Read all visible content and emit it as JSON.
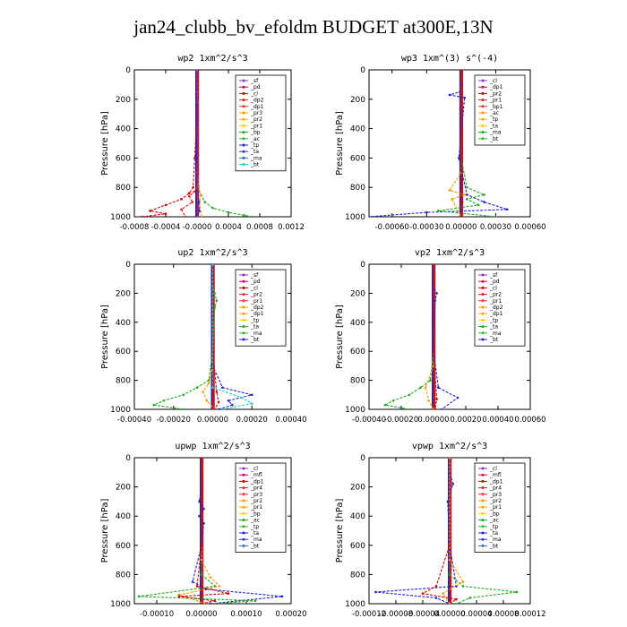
{
  "title": "jan24_clubb_bv_efoldm  BUDGET at300E,13N",
  "chart_data": [
    {
      "type": "line",
      "title": "wp2   1xm^2/s^3",
      "ylabel": "Pressure [hPa]",
      "xlim": [
        -0.0008,
        0.0012
      ],
      "ylim": [
        1000,
        0
      ],
      "xticks": [
        -0.0008,
        -0.0004,
        0.0,
        0.0004,
        0.0008,
        0.0012
      ],
      "xtick_labels": [
        "-0.0008",
        "-0.0004",
        "-0.0000",
        "0.0004",
        "0.0008",
        "0.0012"
      ],
      "yticks": [
        0,
        200,
        400,
        600,
        800,
        1000
      ],
      "ytick_labels": [
        "0",
        "200",
        "400",
        "600",
        "800",
        "1000"
      ],
      "legend": [
        "_sf",
        "_pd",
        "_cl",
        "_dp2",
        "_dp1",
        "_pr3",
        "_pr2",
        "_pr1",
        "_bp",
        "_ac",
        "_tp",
        "_ta",
        "_ma",
        "_bt"
      ],
      "series": [
        {
          "name": "_dp1",
          "color": "#cc0000",
          "x": [
            0,
            0,
            -1e-05,
            -3e-05,
            -5e-05,
            -0.0001,
            -0.0002,
            -0.0004,
            -0.0006,
            -0.0004,
            -0.0007
          ],
          "y": [
            0,
            200,
            400,
            600,
            800,
            840,
            880,
            920,
            960,
            980,
            1000
          ]
        },
        {
          "name": "_dp2",
          "color": "#dd2222",
          "x": [
            0,
            0,
            0,
            0,
            -4e-05,
            -0.0001,
            -6e-05,
            -0.0002,
            -0.00015
          ],
          "y": [
            0,
            400,
            700,
            800,
            830,
            860,
            900,
            950,
            1000
          ]
        },
        {
          "name": "_bp",
          "color": "#22aa22",
          "x": [
            0,
            0,
            1e-05,
            5e-05,
            0.0001,
            0.0002,
            0.0004,
            0.0006,
            0.0007
          ],
          "y": [
            0,
            600,
            800,
            850,
            900,
            940,
            970,
            990,
            1000
          ]
        },
        {
          "name": "_pr1",
          "color": "#ff9900",
          "x": [
            0,
            0,
            2e-05,
            5e-05,
            3e-05,
            6e-05
          ],
          "y": [
            0,
            600,
            800,
            850,
            900,
            1000
          ]
        },
        {
          "name": "_ta",
          "color": "#2222cc",
          "x": [
            0,
            0,
            2e-05,
            3e-05,
            0
          ],
          "y": [
            0,
            600,
            900,
            960,
            1000
          ]
        },
        {
          "name": "_sf",
          "color": "#8833cc",
          "x": [
            0,
            0,
            1e-05,
            1e-05
          ],
          "y": [
            0,
            150,
            220,
            1000
          ]
        }
      ]
    },
    {
      "type": "line",
      "title": "wp3   1xm^(3) s^(-4)",
      "ylabel": "Pressure [hPa]",
      "xlim": [
        -0.0008,
        0.0006
      ],
      "ylim": [
        1000,
        0
      ],
      "xticks": [
        -0.0006,
        -0.0003,
        0.0,
        0.0003,
        0.0006
      ],
      "xtick_labels": [
        "-0.00060",
        "-0.00030",
        "0.00000",
        "0.00030",
        "0.00060"
      ],
      "yticks": [
        0,
        200,
        400,
        600,
        800,
        1000
      ],
      "ytick_labels": [
        "0",
        "200",
        "400",
        "600",
        "800",
        "1000"
      ],
      "legend": [
        "_cl",
        "_dp1",
        "_pr2",
        "_pr1",
        "_bp1",
        "_ac",
        "_tp",
        "_ta",
        "_ma",
        "_bt"
      ],
      "series": [
        {
          "name": "_ta",
          "color": "#2222cc",
          "x": [
            0,
            0,
            -1e-05,
            -0.0001,
            3e-05,
            -2e-05,
            5e-05,
            0.0002,
            0.0004,
            -0.0003,
            -0.0008
          ],
          "y": [
            0,
            100,
            150,
            170,
            190,
            600,
            850,
            900,
            950,
            970,
            1000
          ]
        },
        {
          "name": "_bp1",
          "color": "#22aa22",
          "x": [
            0,
            0,
            5e-05,
            0.0002,
            5e-05,
            0.00015,
            -0.0002,
            0.0003
          ],
          "y": [
            0,
            600,
            800,
            850,
            880,
            920,
            960,
            1000
          ]
        },
        {
          "name": "_pr2",
          "color": "#ff9900",
          "x": [
            0,
            0,
            -0.0001,
            3e-05,
            -8e-05,
            0
          ],
          "y": [
            0,
            700,
            820,
            850,
            880,
            1000
          ]
        },
        {
          "name": "_dp1",
          "color": "#cc0000",
          "x": [
            0,
            0,
            1e-05,
            0
          ],
          "y": [
            0,
            600,
            900,
            1000
          ]
        }
      ]
    },
    {
      "type": "line",
      "title": "up2   1xm^2/s^3",
      "ylabel": "Pressure [hPa]",
      "xlim": [
        -0.0004,
        0.0004
      ],
      "ylim": [
        1000,
        0
      ],
      "xticks": [
        -0.0004,
        -0.0002,
        0.0,
        0.0002,
        0.0004
      ],
      "xtick_labels": [
        "-0.00040",
        "-0.00020",
        "0.00000",
        "0.00020",
        "0.00040"
      ],
      "yticks": [
        0,
        200,
        400,
        600,
        800,
        1000
      ],
      "ytick_labels": [
        "0",
        "200",
        "400",
        "600",
        "800",
        "1000"
      ],
      "legend": [
        "_sf",
        "_pd",
        "_cl",
        "_pr2",
        "_pr1",
        "_dp2",
        "_dp1",
        "_tp",
        "_ta",
        "_ma",
        "_bt"
      ],
      "series": [
        {
          "name": "_pr1",
          "color": "#22aa22",
          "x": [
            0,
            0,
            1e-05,
            2e-05,
            1e-05,
            0,
            -2e-05,
            -8e-05,
            -0.00015,
            -0.00025,
            -0.0003,
            -0.00015
          ],
          "y": [
            0,
            150,
            200,
            250,
            300,
            600,
            800,
            850,
            900,
            940,
            970,
            1000
          ]
        },
        {
          "name": "_pr2",
          "color": "#ff9900",
          "x": [
            0,
            0,
            -2e-05,
            -5e-05,
            -3e-05,
            1e-05
          ],
          "y": [
            0,
            700,
            820,
            880,
            940,
            1000
          ]
        },
        {
          "name": "_ta",
          "color": "#2222cc",
          "x": [
            0,
            0,
            5e-05,
            0.0002,
            8e-05,
            0.0001,
            3e-05
          ],
          "y": [
            0,
            700,
            850,
            900,
            940,
            970,
            1000
          ]
        },
        {
          "name": "_dp1",
          "color": "#cc0000",
          "x": [
            0,
            0,
            2e-05,
            3e-05,
            1e-05
          ],
          "y": [
            0,
            600,
            880,
            950,
            1000
          ]
        },
        {
          "name": "_bt",
          "color": "#22cccc",
          "x": [
            0,
            0,
            0.00015,
            0.0002,
            5e-05
          ],
          "y": [
            0,
            850,
            920,
            960,
            1000
          ]
        }
      ]
    },
    {
      "type": "line",
      "title": "vp2   1xm^2/s^3",
      "ylabel": "Pressure [hPa]",
      "xlim": [
        -0.0004,
        0.0006
      ],
      "ylim": [
        1000,
        0
      ],
      "xticks": [
        -0.0004,
        -0.0002,
        0.0,
        0.0002,
        0.0004,
        0.0006
      ],
      "xtick_labels": [
        "-0.00040",
        "-0.00020",
        "0.00000",
        "0.00020",
        "0.00040",
        "0.00060"
      ],
      "yticks": [
        0,
        200,
        400,
        600,
        800,
        1000
      ],
      "ytick_labels": [
        "0",
        "200",
        "400",
        "600",
        "800",
        "1000"
      ],
      "legend": [
        "_sf",
        "_pd",
        "_cl",
        "_pr2",
        "_pr1",
        "_dp2",
        "_dp1",
        "_tp",
        "_ta",
        "_ma",
        "_bt"
      ],
      "series": [
        {
          "name": "_pr1",
          "color": "#22aa22",
          "x": [
            0,
            0,
            -2e-05,
            -8e-05,
            -0.00015,
            -0.00025,
            -0.0003,
            -0.00015
          ],
          "y": [
            0,
            600,
            800,
            850,
            900,
            940,
            970,
            1000
          ]
        },
        {
          "name": "_ta",
          "color": "#2222cc",
          "x": [
            0,
            0,
            2e-05,
            1e-05,
            0,
            3e-05,
            0.00015,
            5e-05
          ],
          "y": [
            0,
            150,
            200,
            250,
            600,
            850,
            920,
            1000
          ]
        },
        {
          "name": "_pr2",
          "color": "#ff9900",
          "x": [
            0,
            0,
            -5e-05,
            -3e-05,
            0
          ],
          "y": [
            0,
            700,
            850,
            940,
            1000
          ]
        },
        {
          "name": "_dp1",
          "color": "#cc0000",
          "x": [
            0,
            0,
            2e-05,
            1e-05
          ],
          "y": [
            0,
            600,
            930,
            1000
          ]
        }
      ]
    },
    {
      "type": "line",
      "title": "upwp   1xm^2/s^3",
      "ylabel": "Pressure [hPa]",
      "xlim": [
        -0.00015,
        0.0002
      ],
      "ylim": [
        1000,
        0
      ],
      "xticks": [
        -0.0001,
        0.0,
        0.0001,
        0.0002
      ],
      "xtick_labels": [
        "-0.00010",
        "0.00000",
        "0.00010",
        "0.00020"
      ],
      "yticks": [
        0,
        200,
        400,
        600,
        800,
        1000
      ],
      "ytick_labels": [
        "0",
        "200",
        "400",
        "600",
        "800",
        "1000"
      ],
      "legend": [
        "_cl",
        "_mfl",
        "_dp1",
        "_pr4",
        "_pr3",
        "_pr2",
        "_pr1",
        "_bp",
        "_ac",
        "_tp",
        "_ta",
        "_ma",
        "_bt"
      ],
      "series": [
        {
          "name": "_ta",
          "color": "#2222cc",
          "x": [
            0,
            0,
            -5e-06,
            5e-06,
            -5e-06,
            5e-06,
            0,
            -2e-05,
            1e-05,
            0.00018,
            2e-05
          ],
          "y": [
            0,
            200,
            300,
            350,
            400,
            450,
            600,
            850,
            900,
            950,
            1000
          ]
        },
        {
          "name": "_bp",
          "color": "#22aa22",
          "x": [
            0,
            0,
            3e-05,
            -0.00014,
            0.00012,
            3e-05
          ],
          "y": [
            0,
            800,
            880,
            950,
            980,
            1000
          ]
        },
        {
          "name": "_pr1",
          "color": "#ff9900",
          "x": [
            0,
            0,
            2e-05,
            4e-05,
            -5e-05,
            1e-05
          ],
          "y": [
            0,
            700,
            820,
            880,
            940,
            1000
          ]
        },
        {
          "name": "_dp1",
          "color": "#cc0000",
          "x": [
            0,
            0,
            -1e-05,
            6e-05,
            -5e-05,
            3e-05,
            0
          ],
          "y": [
            0,
            600,
            880,
            930,
            950,
            980,
            1000
          ]
        }
      ]
    },
    {
      "type": "line",
      "title": "vpwp   1xm^2/s^3",
      "ylabel": "Pressure [hPa]",
      "xlim": [
        -0.00012,
        0.00012
      ],
      "ylim": [
        1000,
        0
      ],
      "xticks": [
        -0.00012,
        -8e-05,
        -4e-05,
        0.0,
        4e-05,
        8e-05,
        0.00012
      ],
      "xtick_labels": [
        "-0.00012",
        "-0.00008",
        "-0.00004",
        "0.00000",
        "0.00004",
        "0.00008",
        "0.00012"
      ],
      "yticks": [
        0,
        200,
        400,
        600,
        800,
        1000
      ],
      "ytick_labels": [
        "0",
        "200",
        "400",
        "600",
        "800",
        "1000"
      ],
      "legend": [
        "_cl",
        "_mfl",
        "_dp1",
        "_pr4",
        "_pr3",
        "_pr2",
        "_pr1",
        "_bp",
        "_ac",
        "_tp",
        "_ta",
        "_ma",
        "_bt"
      ],
      "series": [
        {
          "name": "_ta",
          "color": "#2222cc",
          "x": [
            0,
            0,
            5e-06,
            -3e-06,
            0,
            1e-05,
            -0.00011,
            -2e-05,
            0
          ],
          "y": [
            0,
            100,
            180,
            300,
            600,
            880,
            920,
            960,
            1000
          ]
        },
        {
          "name": "_bp",
          "color": "#22aa22",
          "x": [
            0,
            0,
            2e-05,
            0.0001,
            3e-05,
            1e-05
          ],
          "y": [
            0,
            800,
            880,
            920,
            960,
            1000
          ]
        },
        {
          "name": "_dp1",
          "color": "#cc0000",
          "x": [
            0,
            0,
            -2e-05,
            -4e-05,
            1e-05,
            0
          ],
          "y": [
            0,
            600,
            880,
            930,
            970,
            1000
          ]
        },
        {
          "name": "_pr1",
          "color": "#ff9900",
          "x": [
            0,
            0,
            2e-05,
            -1e-05,
            0
          ],
          "y": [
            0,
            700,
            850,
            930,
            1000
          ]
        }
      ]
    }
  ]
}
